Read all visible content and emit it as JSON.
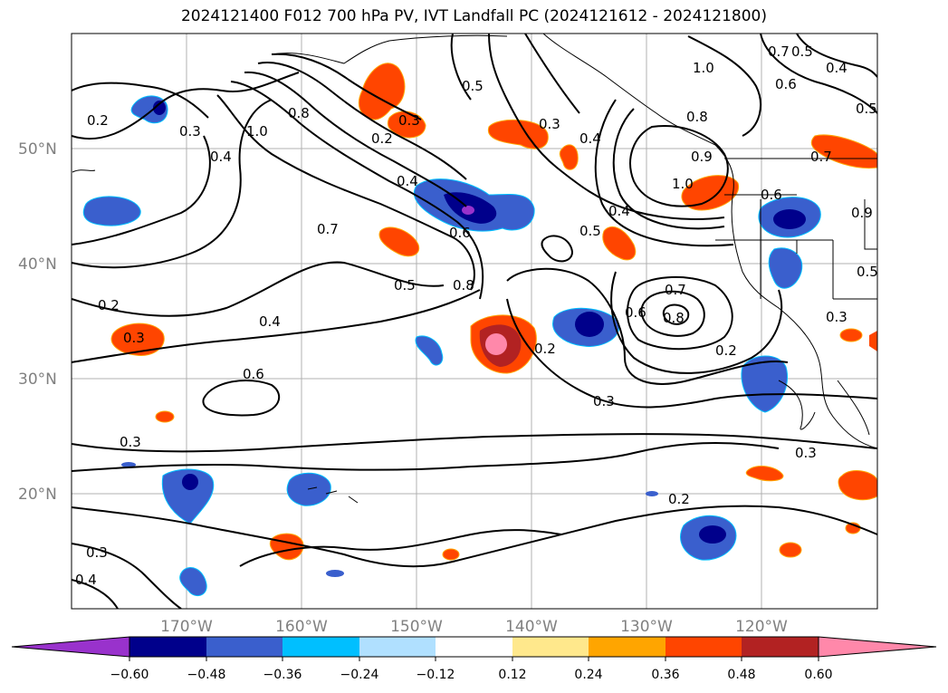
{
  "title": "2024121400 F012 700 hPa PV, IVT Landfall PC (2024121612 - 2024121800)",
  "lat_labels": [
    "50°N",
    "40°N",
    "30°N",
    "20°N"
  ],
  "lon_labels": [
    "170°W",
    "160°W",
    "150°W",
    "140°W",
    "130°W",
    "120°W"
  ],
  "colorbar": {
    "ticks": [
      "−0.60",
      "−0.48",
      "−0.36",
      "−0.24",
      "−0.12",
      "0.12",
      "0.24",
      "0.36",
      "0.48",
      "0.60"
    ],
    "colors": [
      "#9932cc",
      "#00008b",
      "#3a5fcd",
      "#00bfff",
      "#b0e0ff",
      "#ffffff",
      "#ffe88c",
      "#ffa500",
      "#ff4500",
      "#b22222",
      "#ff88aa"
    ]
  },
  "contour_labels": [
    "0.2",
    "0.3",
    "0.4",
    "1.0",
    "0.8",
    "0.2",
    "0.3",
    "0.4",
    "0.5",
    "0.7",
    "0.6",
    "0.8",
    "0.5",
    "0.3",
    "0.4",
    "0.8",
    "0.9",
    "1.0",
    "0.4",
    "0.5",
    "0.6",
    "0.7",
    "0.8",
    "0.6",
    "0.2",
    "0.3",
    "0.2",
    "0.4",
    "0.2",
    "0.3",
    "0.3",
    "0.3",
    "0.2",
    "0.3",
    "0.4",
    "1.0",
    "0.7",
    "0.5",
    "0.6",
    "0.4",
    "0.7",
    "0.5",
    "0.9",
    "0.5",
    "0.3",
    "0.6"
  ],
  "map_labels_note": ""
}
